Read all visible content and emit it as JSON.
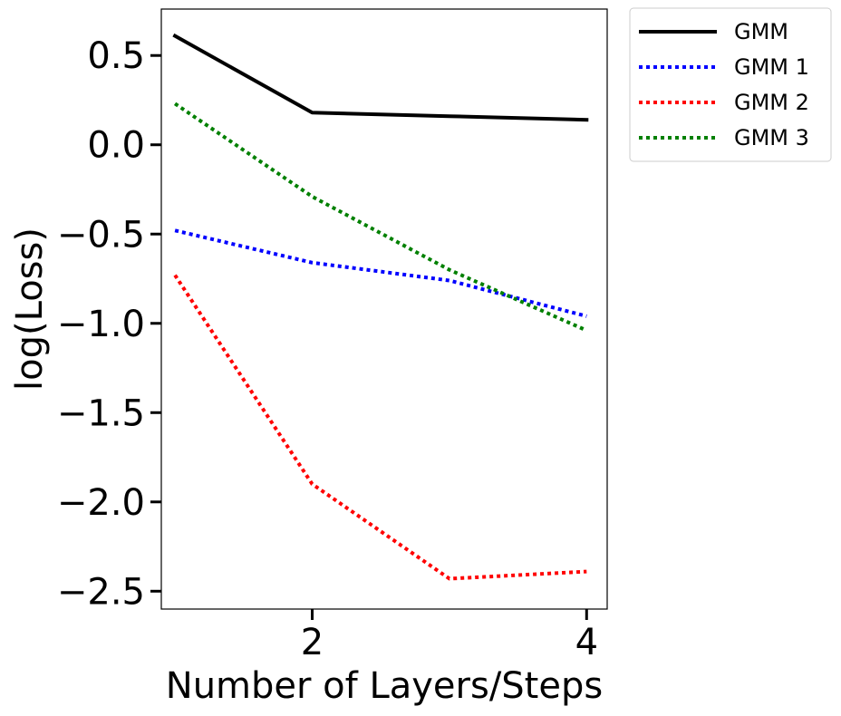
{
  "chart_data": {
    "type": "line",
    "title": "",
    "xlabel": "Number of Layers/Steps",
    "ylabel": "log(Loss)",
    "x": [
      1,
      2,
      3,
      4
    ],
    "xlim": [
      0.9,
      4.15
    ],
    "ylim": [
      -2.6,
      0.76
    ],
    "xticks": [
      2,
      4
    ],
    "xtick_labels": [
      "2",
      "4"
    ],
    "yticks": [
      0.5,
      0.0,
      -0.5,
      -1.0,
      -1.5,
      -2.0,
      -2.5
    ],
    "ytick_labels": [
      "0.5",
      "0.0",
      "−0.5",
      "−1.0",
      "−1.5",
      "−2.0",
      "−2.5"
    ],
    "grid": false,
    "legend_placement": "outside-top-right",
    "series": [
      {
        "name": "GMM",
        "values": [
          0.61,
          0.18,
          0.16,
          0.14
        ],
        "color": "#000000",
        "style": "solid"
      },
      {
        "name": "GMM 1",
        "values": [
          -0.48,
          -0.66,
          -0.76,
          -0.96
        ],
        "color": "#0000ff",
        "style": "dotted"
      },
      {
        "name": "GMM 2",
        "values": [
          -0.73,
          -1.9,
          -2.43,
          -2.39
        ],
        "color": "#ff0000",
        "style": "dotted"
      },
      {
        "name": "GMM 3",
        "values": [
          0.23,
          -0.29,
          -0.7,
          -1.04
        ],
        "color": "#008000",
        "style": "dotted"
      }
    ]
  }
}
